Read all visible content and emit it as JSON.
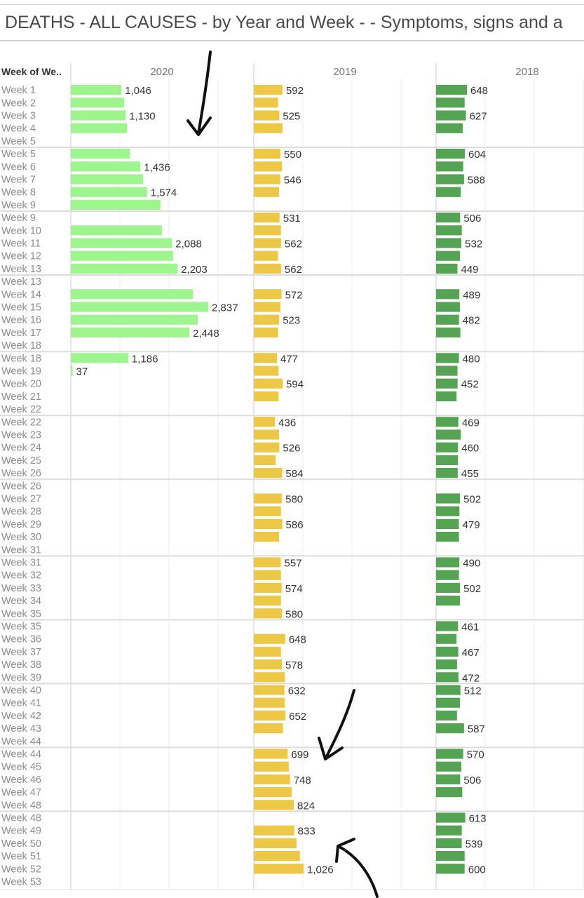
{
  "title": "DEATHS - ALL CAUSES - by Year and Week -  - Symptoms, signs and a",
  "row_header": "Week of We..",
  "colors": {
    "2020": "#9ef58e",
    "2019": "#edc846",
    "2018": "#55a454",
    "text": "#333333",
    "week_text": "#8c8c8c",
    "grid": "#d9d9d9",
    "separator": "#dcdcdc"
  },
  "chart_data": {
    "type": "bar",
    "orientation": "horizontal",
    "columns": [
      "2020",
      "2019",
      "2018"
    ],
    "row_header": "Week of We..",
    "panels": [
      {
        "weeks": [
          "Week 1",
          "Week 2",
          "Week 3",
          "Week 4",
          "Week 5"
        ],
        "values": {
          "2020": [
            1046,
            1100,
            1130,
            1160,
            null
          ],
          "2019": [
            592,
            500,
            525,
            590,
            null
          ],
          "2018": [
            648,
            600,
            627,
            560,
            null
          ]
        },
        "labels": {
          "2020": [
            "1,046",
            "",
            "1,130",
            "",
            ""
          ],
          "2019": [
            "592",
            "",
            "525",
            "",
            ""
          ],
          "2018": [
            "648",
            "",
            "627",
            "",
            ""
          ]
        }
      },
      {
        "weeks": [
          "Week 5",
          "Week 6",
          "Week 7",
          "Week 8",
          "Week 9"
        ],
        "values": {
          "2020": [
            1220,
            1436,
            1490,
            1574,
            1850
          ],
          "2019": [
            550,
            580,
            546,
            520,
            null
          ],
          "2018": [
            604,
            570,
            588,
            520,
            null
          ]
        },
        "labels": {
          "2020": [
            "",
            "1,436",
            "",
            "1,574",
            ""
          ],
          "2019": [
            "550",
            "",
            "546",
            "",
            ""
          ],
          "2018": [
            "604",
            "",
            "588",
            "",
            ""
          ]
        }
      },
      {
        "weeks": [
          "Week 9",
          "Week 10",
          "Week 11",
          "Week 12",
          "Week 13"
        ],
        "values": {
          "2020": [
            null,
            1880,
            2088,
            2110,
            2203
          ],
          "2019": [
            531,
            560,
            562,
            500,
            562
          ],
          "2018": [
            506,
            540,
            532,
            500,
            449
          ]
        },
        "labels": {
          "2020": [
            "",
            "",
            "2,088",
            "",
            "2,203"
          ],
          "2019": [
            "531",
            "",
            "562",
            "",
            "562"
          ],
          "2018": [
            "506",
            "",
            "532",
            "",
            "449"
          ]
        }
      },
      {
        "weeks": [
          "Week 13",
          "Week 14",
          "Week 15",
          "Week 16",
          "Week 17",
          "Week 18"
        ],
        "values": {
          "2020": [
            null,
            2520,
            2837,
            2620,
            2448,
            null
          ],
          "2019": [
            null,
            572,
            550,
            523,
            500,
            null
          ],
          "2018": [
            null,
            489,
            500,
            482,
            510,
            null
          ]
        },
        "labels": {
          "2020": [
            "",
            "",
            "2,837",
            "",
            "2,448",
            ""
          ],
          "2019": [
            "",
            "572",
            "",
            "523",
            "",
            ""
          ],
          "2018": [
            "",
            "489",
            "",
            "482",
            "",
            ""
          ]
        }
      },
      {
        "weeks": [
          "Week 18",
          "Week 19",
          "Week 20",
          "Week 21",
          "Week 22"
        ],
        "values": {
          "2020": [
            1186,
            37,
            null,
            null,
            null
          ],
          "2019": [
            477,
            510,
            594,
            510,
            null
          ],
          "2018": [
            480,
            450,
            452,
            430,
            null
          ]
        },
        "labels": {
          "2020": [
            "1,186",
            "37",
            "",
            "",
            ""
          ],
          "2019": [
            "477",
            "",
            "594",
            "",
            ""
          ],
          "2018": [
            "480",
            "",
            "452",
            "",
            ""
          ]
        }
      },
      {
        "weeks": [
          "Week 22",
          "Week 23",
          "Week 24",
          "Week 25",
          "Week 26"
        ],
        "values": {
          "2020": [
            null,
            null,
            null,
            null,
            null
          ],
          "2019": [
            436,
            520,
            526,
            450,
            584
          ],
          "2018": [
            469,
            520,
            460,
            460,
            455
          ]
        },
        "labels": {
          "2020": [
            "",
            "",
            "",
            "",
            ""
          ],
          "2019": [
            "436",
            "",
            "526",
            "",
            "584"
          ],
          "2018": [
            "469",
            "",
            "460",
            "",
            "455"
          ]
        }
      },
      {
        "weeks": [
          "Week 26",
          "Week 27",
          "Week 28",
          "Week 29",
          "Week 30",
          "Week 31"
        ],
        "values": {
          "2020": [
            null,
            null,
            null,
            null,
            null,
            null
          ],
          "2019": [
            null,
            580,
            560,
            586,
            520,
            null
          ],
          "2018": [
            null,
            502,
            490,
            479,
            480,
            null
          ]
        },
        "labels": {
          "2020": [
            "",
            "",
            "",
            "",
            "",
            ""
          ],
          "2019": [
            "",
            "580",
            "",
            "586",
            "",
            ""
          ],
          "2018": [
            "",
            "502",
            "",
            "479",
            "",
            ""
          ]
        }
      },
      {
        "weeks": [
          "Week 31",
          "Week 32",
          "Week 33",
          "Week 34",
          "Week 35"
        ],
        "values": {
          "2020": [
            null,
            null,
            null,
            null,
            null
          ],
          "2019": [
            557,
            560,
            574,
            560,
            580
          ],
          "2018": [
            490,
            480,
            502,
            500,
            null
          ]
        },
        "labels": {
          "2020": [
            "",
            "",
            "",
            "",
            ""
          ],
          "2019": [
            "557",
            "",
            "574",
            "",
            "580"
          ],
          "2018": [
            "490",
            "",
            "502",
            "",
            ""
          ]
        }
      },
      {
        "weeks": [
          "Week 35",
          "Week 36",
          "Week 37",
          "Week 38",
          "Week 39"
        ],
        "values": {
          "2020": [
            null,
            null,
            null,
            null,
            null
          ],
          "2019": [
            null,
            648,
            560,
            578,
            640
          ],
          "2018": [
            461,
            430,
            467,
            440,
            472
          ]
        },
        "labels": {
          "2020": [
            "",
            "",
            "",
            "",
            ""
          ],
          "2019": [
            "",
            "648",
            "",
            "578",
            ""
          ],
          "2018": [
            "461",
            "",
            "467",
            "",
            "472"
          ]
        }
      },
      {
        "weeks": [
          "Week 40",
          "Week 41",
          "Week 42",
          "Week 43",
          "Week 44"
        ],
        "values": {
          "2020": [
            null,
            null,
            null,
            null,
            null
          ],
          "2019": [
            632,
            640,
            652,
            600,
            null
          ],
          "2018": [
            512,
            500,
            440,
            587,
            null
          ]
        },
        "labels": {
          "2020": [
            "",
            "",
            "",
            "",
            ""
          ],
          "2019": [
            "632",
            "",
            "652",
            "",
            ""
          ],
          "2018": [
            "512",
            "",
            "",
            "587",
            ""
          ]
        }
      },
      {
        "weeks": [
          "Week 44",
          "Week 45",
          "Week 46",
          "Week 47",
          "Week 48"
        ],
        "values": {
          "2020": [
            null,
            null,
            null,
            null,
            null
          ],
          "2019": [
            699,
            720,
            748,
            780,
            824
          ],
          "2018": [
            570,
            530,
            506,
            550,
            null
          ]
        },
        "labels": {
          "2020": [
            "",
            "",
            "",
            "",
            ""
          ],
          "2019": [
            "699",
            "",
            "748",
            "",
            "824"
          ],
          "2018": [
            "570",
            "",
            "506",
            "",
            ""
          ]
        }
      },
      {
        "weeks": [
          "Week 48",
          "Week 49",
          "Week 50",
          "Week 51",
          "Week 52",
          "Week 53"
        ],
        "values": {
          "2020": [
            null,
            null,
            null,
            null,
            null,
            null
          ],
          "2019": [
            null,
            833,
            880,
            950,
            1026,
            null
          ],
          "2018": [
            613,
            540,
            539,
            600,
            600,
            null
          ]
        },
        "labels": {
          "2020": [
            "",
            "",
            "",
            "",
            "",
            ""
          ],
          "2019": [
            "",
            "833",
            "",
            "",
            "1,026",
            ""
          ],
          "2018": [
            "613",
            "",
            "539",
            "",
            "600",
            ""
          ]
        }
      }
    ]
  }
}
